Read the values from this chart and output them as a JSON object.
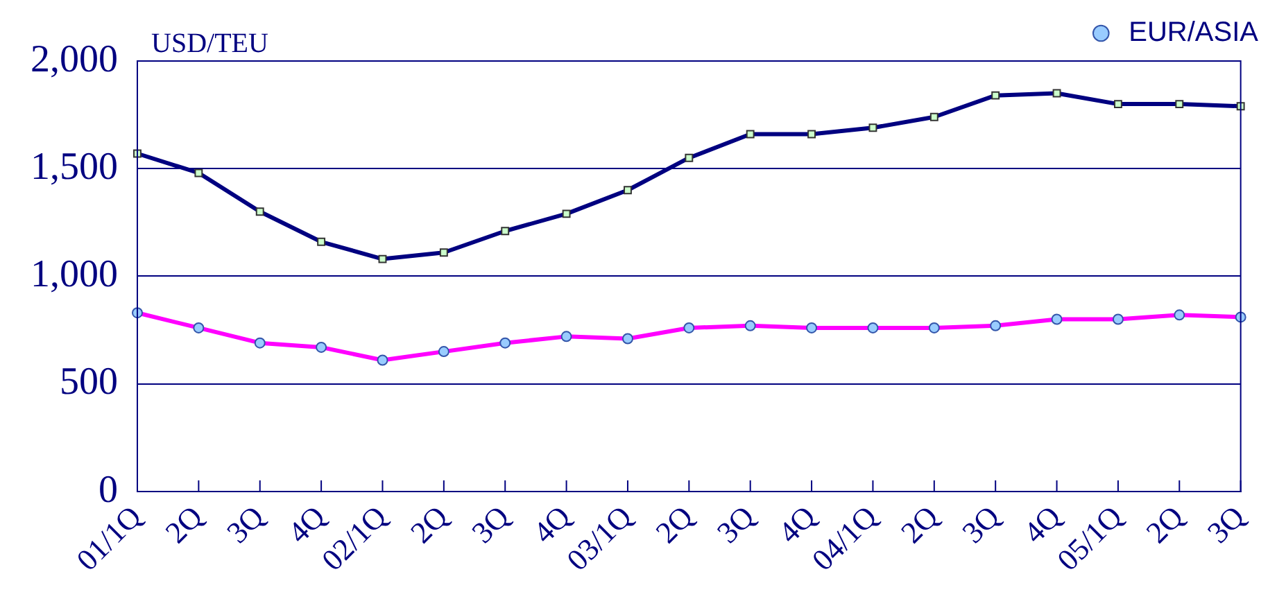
{
  "chart_data": {
    "type": "line",
    "ylabel": "USD/TEU",
    "categories": [
      "01/1Q",
      "2Q",
      "3Q",
      "4Q",
      "02/1Q",
      "2Q",
      "3Q",
      "4Q",
      "03/1Q",
      "2Q",
      "3Q",
      "4Q",
      "04/1Q",
      "2Q",
      "3Q",
      "4Q",
      "05/1Q",
      "2Q",
      "3Q"
    ],
    "series": [
      {
        "color": "#000080",
        "marker": "square",
        "values": [
          1570,
          1480,
          1300,
          1160,
          1080,
          1110,
          1210,
          1290,
          1400,
          1550,
          1660,
          1660,
          1690,
          1740,
          1840,
          1850,
          1800,
          1800,
          1790
        ]
      },
      {
        "name": "EUR/ASIA",
        "color": "#ff00ff",
        "marker": "circle",
        "values": [
          830,
          760,
          690,
          670,
          610,
          650,
          690,
          720,
          710,
          760,
          770,
          760,
          760,
          760,
          770,
          800,
          800,
          820,
          810
        ]
      }
    ],
    "ylim": [
      0,
      2000
    ],
    "yticks": [
      0,
      500,
      {
        "value": 1000,
        "label": "1,000"
      },
      {
        "value": 1500,
        "label": "1,500"
      },
      {
        "value": 2000,
        "label": "2,000"
      }
    ],
    "grid": "y",
    "legend": "top right",
    "line_style": "solid"
  }
}
